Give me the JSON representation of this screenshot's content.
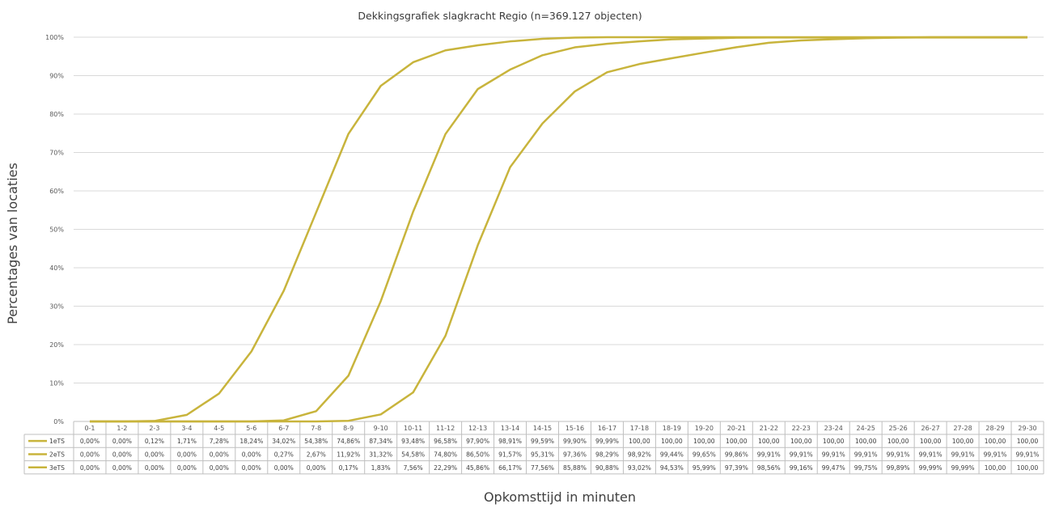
{
  "chart_data": {
    "type": "line",
    "title": "Dekkingsgrafiek slagkracht  Regio   (n=369.127 objecten)",
    "xlabel": "Opkomsttijd in minuten",
    "ylabel": "Percentages van locaties",
    "ylim": [
      0,
      100
    ],
    "yticks": [
      "0%",
      "10%",
      "20%",
      "30%",
      "40%",
      "50%",
      "60%",
      "70%",
      "80%",
      "90%",
      "100%"
    ],
    "grid": true,
    "legend": "data-table",
    "color": "#c8b43c",
    "categories": [
      "0-1",
      "1-2",
      "2-3",
      "3-4",
      "4-5",
      "5-6",
      "6-7",
      "7-8",
      "8-9",
      "9-10",
      "10-11",
      "11-12",
      "12-13",
      "13-14",
      "14-15",
      "15-16",
      "16-17",
      "17-18",
      "18-19",
      "19-20",
      "20-21",
      "21-22",
      "22-23",
      "23-24",
      "24-25",
      "25-26",
      "26-27",
      "27-28",
      "28-29",
      "29-30"
    ],
    "series": [
      {
        "name": "1eTS",
        "values": [
          0,
          0,
          0.12,
          1.71,
          7.28,
          18.24,
          34.02,
          54.38,
          74.86,
          87.34,
          93.48,
          96.58,
          97.9,
          98.91,
          99.59,
          99.9,
          99.99,
          100,
          100,
          100,
          100,
          100,
          100,
          100,
          100,
          100,
          100,
          100,
          100,
          100
        ],
        "labels": [
          "0,00%",
          "0,00%",
          "0,12%",
          "1,71%",
          "7,28%",
          "18,24%",
          "34,02%",
          "54,38%",
          "74,86%",
          "87,34%",
          "93,48%",
          "96,58%",
          "97,90%",
          "98,91%",
          "99,59%",
          "99,90%",
          "99,99%",
          "100,00",
          "100,00",
          "100,00",
          "100,00",
          "100,00",
          "100,00",
          "100,00",
          "100,00",
          "100,00",
          "100,00",
          "100,00",
          "100,00",
          "100,00"
        ]
      },
      {
        "name": "2eTS",
        "values": [
          0,
          0,
          0,
          0,
          0,
          0,
          0.27,
          2.67,
          11.92,
          31.32,
          54.58,
          74.8,
          86.5,
          91.57,
          95.31,
          97.36,
          98.29,
          98.92,
          99.44,
          99.65,
          99.86,
          99.91,
          99.91,
          99.91,
          99.91,
          99.91,
          99.91,
          99.91,
          99.91,
          99.91
        ],
        "labels": [
          "0,00%",
          "0,00%",
          "0,00%",
          "0,00%",
          "0,00%",
          "0,00%",
          "0,27%",
          "2,67%",
          "11,92%",
          "31,32%",
          "54,58%",
          "74,80%",
          "86,50%",
          "91,57%",
          "95,31%",
          "97,36%",
          "98,29%",
          "98,92%",
          "99,44%",
          "99,65%",
          "99,86%",
          "99,91%",
          "99,91%",
          "99,91%",
          "99,91%",
          "99,91%",
          "99,91%",
          "99,91%",
          "99,91%",
          "99,91%"
        ]
      },
      {
        "name": "3eTS",
        "values": [
          0,
          0,
          0,
          0,
          0,
          0,
          0,
          0,
          0.17,
          1.83,
          7.56,
          22.29,
          45.86,
          66.17,
          77.56,
          85.88,
          90.88,
          93.02,
          94.53,
          95.99,
          97.39,
          98.56,
          99.16,
          99.47,
          99.75,
          99.89,
          99.99,
          99.99,
          100,
          100
        ],
        "labels": [
          "0,00%",
          "0,00%",
          "0,00%",
          "0,00%",
          "0,00%",
          "0,00%",
          "0,00%",
          "0,00%",
          "0,17%",
          "1,83%",
          "7,56%",
          "22,29%",
          "45,86%",
          "66,17%",
          "77,56%",
          "85,88%",
          "90,88%",
          "93,02%",
          "94,53%",
          "95,99%",
          "97,39%",
          "98,56%",
          "99,16%",
          "99,47%",
          "99,75%",
          "99,89%",
          "99,99%",
          "99,99%",
          "100,00",
          "100,00"
        ]
      }
    ]
  }
}
